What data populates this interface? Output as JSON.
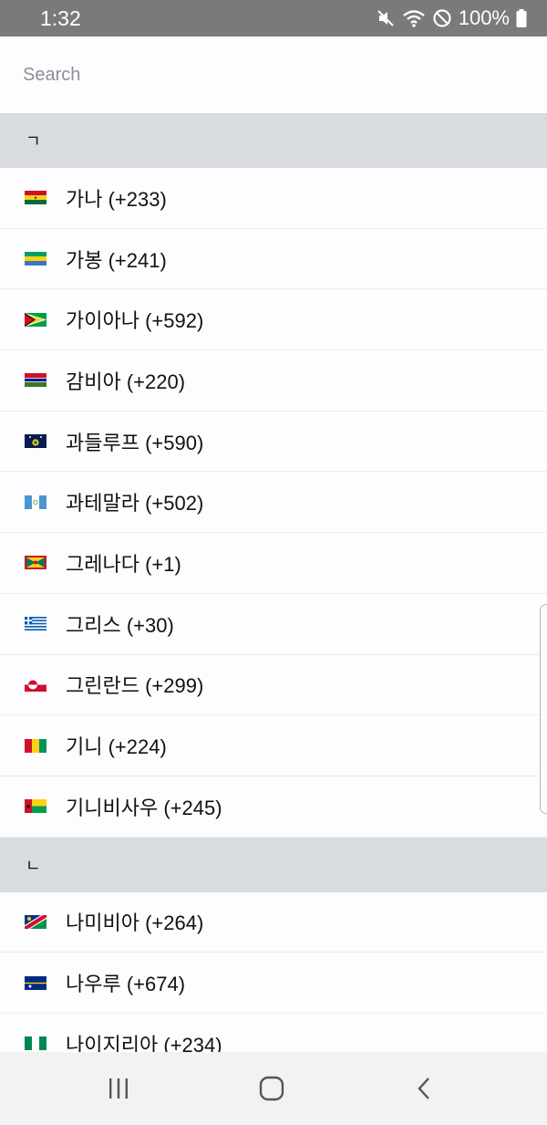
{
  "status_bar": {
    "time": "1:32",
    "battery": "100%",
    "icons": [
      "mute-icon",
      "wifi-icon",
      "do-not-disturb-icon",
      "battery-icon"
    ]
  },
  "search": {
    "placeholder": "Search",
    "value": ""
  },
  "sections": [
    {
      "header": "ㄱ",
      "items": [
        {
          "label": "가나 (+233)",
          "flag": "ghana"
        },
        {
          "label": "가봉 (+241)",
          "flag": "gabon"
        },
        {
          "label": "가이아나 (+592)",
          "flag": "guyana"
        },
        {
          "label": "감비아 (+220)",
          "flag": "gambia"
        },
        {
          "label": "과들루프 (+590)",
          "flag": "guadeloupe"
        },
        {
          "label": "과테말라 (+502)",
          "flag": "guatemala"
        },
        {
          "label": "그레나다 (+1)",
          "flag": "grenada"
        },
        {
          "label": "그리스 (+30)",
          "flag": "greece"
        },
        {
          "label": "그린란드 (+299)",
          "flag": "greenland"
        },
        {
          "label": "기니 (+224)",
          "flag": "guinea"
        },
        {
          "label": "기니비사우 (+245)",
          "flag": "guinea-bissau"
        }
      ]
    },
    {
      "header": "ㄴ",
      "items": [
        {
          "label": "나미비아 (+264)",
          "flag": "namibia"
        },
        {
          "label": "나우루 (+674)",
          "flag": "nauru"
        },
        {
          "label": "나이지리아 (+234)",
          "flag": "nigeria"
        }
      ]
    }
  ],
  "nav_bar": {
    "icons": [
      "recent-apps-icon",
      "home-icon",
      "back-icon"
    ]
  },
  "colors": {
    "status_bar": "#7a7a7c",
    "section_header": "#d8dcdf",
    "background": "#fdfcff",
    "nav_bar": "#f2f2f3"
  }
}
